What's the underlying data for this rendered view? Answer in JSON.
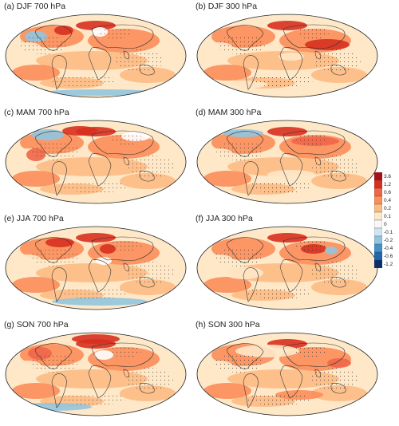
{
  "panels": [
    {
      "label": "(a) DJF  700 hPa"
    },
    {
      "label": "(b) DJF  300 hPa"
    },
    {
      "label": "(c) MAM  700 hPa"
    },
    {
      "label": "(d) MAM  300 hPa"
    },
    {
      "label": "(e) JJA  700 hPa"
    },
    {
      "label": "(f) JJA  300 hPa"
    },
    {
      "label": "(g) SON  700 hPa"
    },
    {
      "label": "(h) SON  300 hPa"
    }
  ],
  "colorbar": {
    "ticks": [
      "3.6",
      "1.2",
      "0.6",
      "0.4",
      "0.2",
      "0.1",
      "0",
      "-0.1",
      "-0.2",
      "-0.4",
      "-0.6",
      "-1.2"
    ],
    "colors": [
      "#a50f15",
      "#d7301f",
      "#ef6548",
      "#fc8d59",
      "#fdbb84",
      "#fee8c8",
      "#f7f7f7",
      "#d1e5f0",
      "#92c5de",
      "#4393c3",
      "#2166ac",
      "#08306b"
    ]
  }
}
